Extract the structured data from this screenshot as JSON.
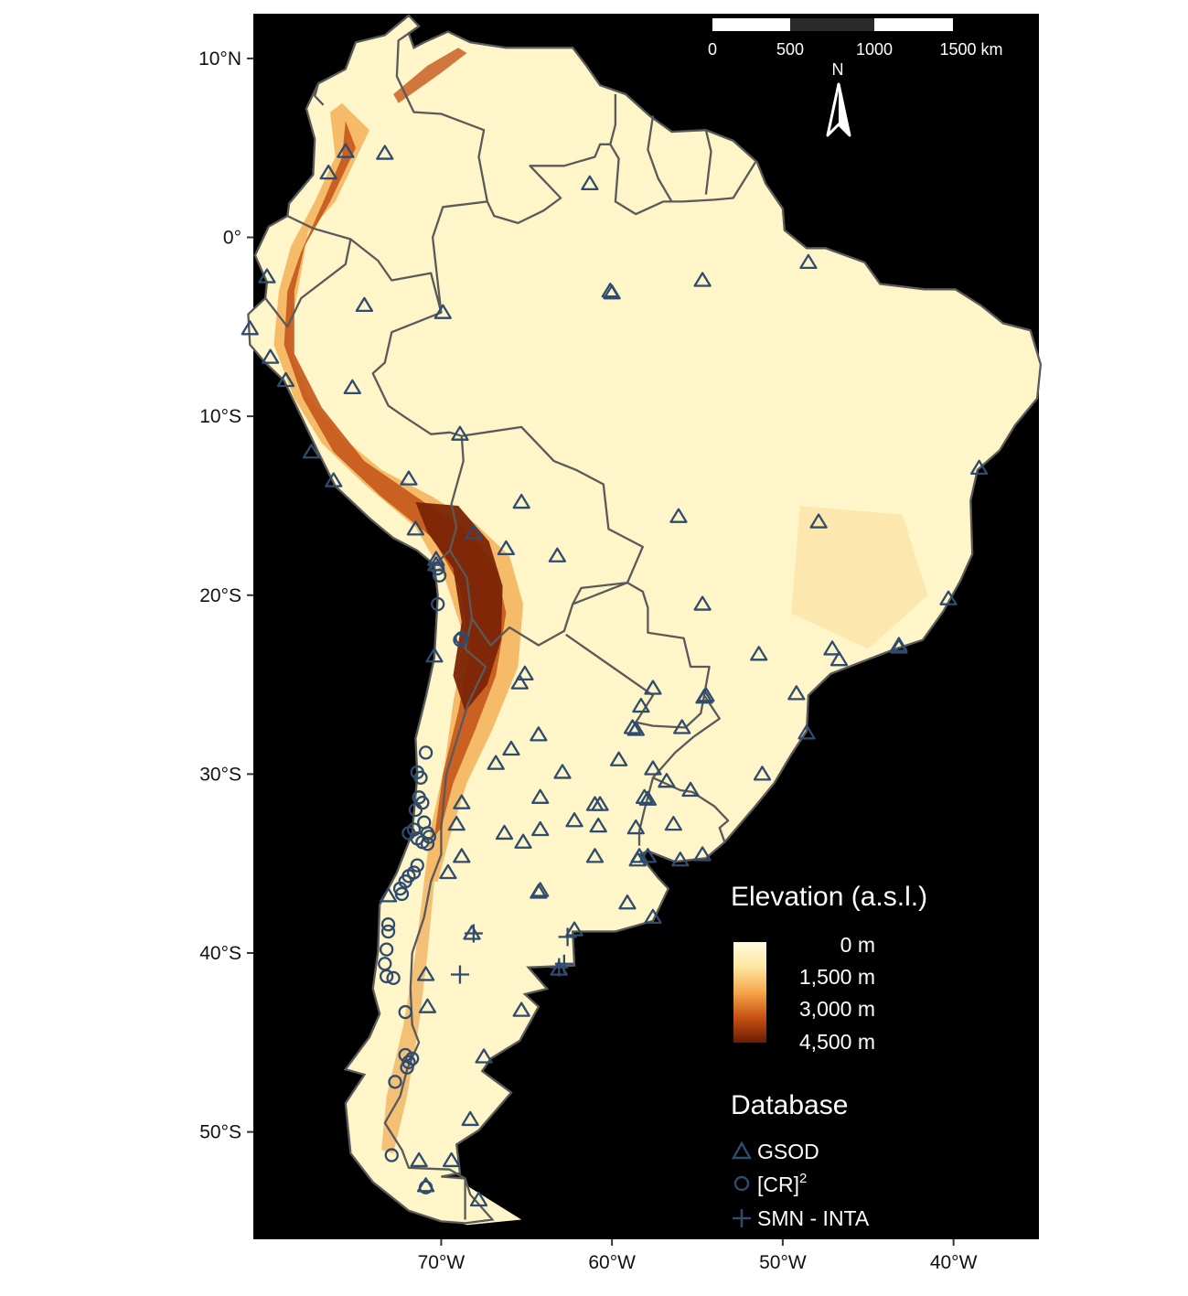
{
  "axes": {
    "lat_ticks": [
      {
        "value": 10,
        "label": "10°N"
      },
      {
        "value": 0,
        "label": "0°"
      },
      {
        "value": -10,
        "label": "10°S"
      },
      {
        "value": -20,
        "label": "20°S"
      },
      {
        "value": -30,
        "label": "30°S"
      },
      {
        "value": -40,
        "label": "40°S"
      },
      {
        "value": -50,
        "label": "50°S"
      }
    ],
    "lon_ticks": [
      {
        "value": -70,
        "label": "70°W"
      },
      {
        "value": -60,
        "label": "60°W"
      },
      {
        "value": -50,
        "label": "50°W"
      },
      {
        "value": -40,
        "label": "40°W"
      }
    ],
    "lon_range": [
      -81,
      -35
    ],
    "lat_range": [
      -56,
      12.5
    ]
  },
  "scalebar": {
    "labels": [
      "0",
      "500",
      "1000",
      "1500 km"
    ],
    "north_label": "N"
  },
  "legend": {
    "elevation": {
      "title": "Elevation (a.s.l.)",
      "labels": [
        "0 m",
        "1,500 m",
        "3,000 m",
        "4,500 m"
      ],
      "colors": [
        "#fffbe0",
        "#fde7a0",
        "#f6a64a",
        "#c75112",
        "#6a1c04"
      ]
    },
    "database": {
      "title": "Database",
      "items": [
        {
          "key": "gsod",
          "label": "GSOD",
          "symbol": "triangle"
        },
        {
          "key": "cr2",
          "label": "[CR]",
          "superscript": "2",
          "symbol": "circle"
        },
        {
          "key": "smn",
          "label": "SMN - INTA",
          "symbol": "plus"
        }
      ]
    }
  },
  "colors": {
    "ocean": "#000000",
    "land": "#fef5c8",
    "border": "#5a5a5a",
    "station": "#2f4b6e"
  },
  "stations": {
    "gsod": [
      [
        -75.6,
        4.8
      ],
      [
        -73.3,
        4.7
      ],
      [
        -76.6,
        3.6
      ],
      [
        -61.3,
        3.0
      ],
      [
        -80.2,
        -2.2
      ],
      [
        -81.2,
        -5.1
      ],
      [
        -80.0,
        -6.7
      ],
      [
        -79.1,
        -8.0
      ],
      [
        -74.5,
        -3.8
      ],
      [
        -69.9,
        -4.2
      ],
      [
        -60.0,
        -3.1
      ],
      [
        -60.1,
        -3.0
      ],
      [
        -54.7,
        -2.4
      ],
      [
        -48.5,
        -1.4
      ],
      [
        -75.2,
        -8.4
      ],
      [
        -68.9,
        -11.0
      ],
      [
        -77.6,
        -12.0
      ],
      [
        -76.3,
        -13.6
      ],
      [
        -71.9,
        -13.5
      ],
      [
        -71.5,
        -16.3
      ],
      [
        -70.3,
        -18.0
      ],
      [
        -70.3,
        -18.3
      ],
      [
        -68.1,
        -16.5
      ],
      [
        -66.2,
        -17.4
      ],
      [
        -63.2,
        -17.8
      ],
      [
        -65.3,
        -14.8
      ],
      [
        -56.1,
        -15.6
      ],
      [
        -47.9,
        -15.9
      ],
      [
        -38.5,
        -12.9
      ],
      [
        -40.3,
        -20.2
      ],
      [
        -54.7,
        -20.5
      ],
      [
        -51.4,
        -23.3
      ],
      [
        -47.1,
        -23.0
      ],
      [
        -46.7,
        -23.6
      ],
      [
        -43.2,
        -22.9
      ],
      [
        -43.2,
        -22.8
      ],
      [
        -49.2,
        -25.5
      ],
      [
        -54.5,
        -25.6
      ],
      [
        -54.6,
        -25.7
      ],
      [
        -57.6,
        -25.2
      ],
      [
        -58.3,
        -26.2
      ],
      [
        -58.8,
        -27.4
      ],
      [
        -58.6,
        -27.5
      ],
      [
        -55.9,
        -27.4
      ],
      [
        -48.6,
        -27.7
      ],
      [
        -70.4,
        -23.4
      ],
      [
        -65.4,
        -24.9
      ],
      [
        -65.1,
        -24.4
      ],
      [
        -64.3,
        -27.8
      ],
      [
        -65.9,
        -28.6
      ],
      [
        -66.8,
        -29.4
      ],
      [
        -62.9,
        -29.9
      ],
      [
        -64.2,
        -31.3
      ],
      [
        -61.0,
        -31.7
      ],
      [
        -60.7,
        -31.7
      ],
      [
        -59.6,
        -29.2
      ],
      [
        -57.6,
        -29.7
      ],
      [
        -56.8,
        -30.4
      ],
      [
        -55.4,
        -30.9
      ],
      [
        -58.1,
        -31.3
      ],
      [
        -57.9,
        -31.4
      ],
      [
        -68.8,
        -31.6
      ],
      [
        -69.1,
        -32.8
      ],
      [
        -66.3,
        -33.3
      ],
      [
        -65.2,
        -33.8
      ],
      [
        -64.2,
        -33.1
      ],
      [
        -62.2,
        -32.6
      ],
      [
        -60.8,
        -32.9
      ],
      [
        -58.6,
        -33.0
      ],
      [
        -56.4,
        -32.8
      ],
      [
        -58.4,
        -34.6
      ],
      [
        -58.5,
        -34.8
      ],
      [
        -57.9,
        -34.6
      ],
      [
        -56.0,
        -34.8
      ],
      [
        -54.7,
        -34.5
      ],
      [
        -51.2,
        -30.0
      ],
      [
        -61.0,
        -34.6
      ],
      [
        -68.8,
        -34.6
      ],
      [
        -69.6,
        -35.5
      ],
      [
        -64.3,
        -36.6
      ],
      [
        -64.2,
        -36.5
      ],
      [
        -59.1,
        -37.2
      ],
      [
        -57.6,
        -38.0
      ],
      [
        -73.1,
        -36.8
      ],
      [
        -62.2,
        -38.7
      ],
      [
        -68.2,
        -38.9
      ],
      [
        -63.1,
        -40.9
      ],
      [
        -70.9,
        -41.2
      ],
      [
        -70.8,
        -43.0
      ],
      [
        -65.3,
        -43.2
      ],
      [
        -67.5,
        -45.8
      ],
      [
        -68.3,
        -49.3
      ],
      [
        -71.3,
        -51.6
      ],
      [
        -69.4,
        -51.6
      ],
      [
        -70.9,
        -53.0
      ],
      [
        -67.8,
        -53.8
      ]
    ],
    "cr2": [
      [
        -70.2,
        -18.5
      ],
      [
        -70.1,
        -18.9
      ],
      [
        -70.2,
        -20.5
      ],
      [
        -68.9,
        -22.5
      ],
      [
        -68.8,
        -22.4
      ],
      [
        -71.4,
        -29.9
      ],
      [
        -71.2,
        -30.2
      ],
      [
        -70.9,
        -28.8
      ],
      [
        -71.3,
        -31.3
      ],
      [
        -71.1,
        -31.6
      ],
      [
        -71.5,
        -32.0
      ],
      [
        -71.0,
        -32.7
      ],
      [
        -70.8,
        -33.3
      ],
      [
        -70.7,
        -33.5
      ],
      [
        -71.6,
        -33.1
      ],
      [
        -71.9,
        -33.3
      ],
      [
        -71.4,
        -33.6
      ],
      [
        -71.1,
        -33.8
      ],
      [
        -70.8,
        -33.9
      ],
      [
        -71.4,
        -35.1
      ],
      [
        -71.6,
        -35.5
      ],
      [
        -71.9,
        -35.7
      ],
      [
        -72.1,
        -36.0
      ],
      [
        -72.4,
        -36.4
      ],
      [
        -72.3,
        -36.7
      ],
      [
        -73.1,
        -38.4
      ],
      [
        -73.1,
        -38.8
      ],
      [
        -73.2,
        -39.8
      ],
      [
        -73.3,
        -40.6
      ],
      [
        -73.2,
        -41.3
      ],
      [
        -72.8,
        -41.4
      ],
      [
        -72.1,
        -43.3
      ],
      [
        -72.1,
        -45.7
      ],
      [
        -71.7,
        -45.9
      ],
      [
        -72.0,
        -46.4
      ],
      [
        -71.9,
        -46.1
      ],
      [
        -72.7,
        -47.2
      ],
      [
        -72.9,
        -51.3
      ],
      [
        -70.9,
        -53.1
      ]
    ],
    "smn": [
      [
        -68.1,
        -38.9
      ],
      [
        -68.9,
        -41.2
      ],
      [
        -62.6,
        -39.1
      ],
      [
        -63.1,
        -40.8
      ],
      [
        -62.8,
        -40.6
      ]
    ]
  }
}
